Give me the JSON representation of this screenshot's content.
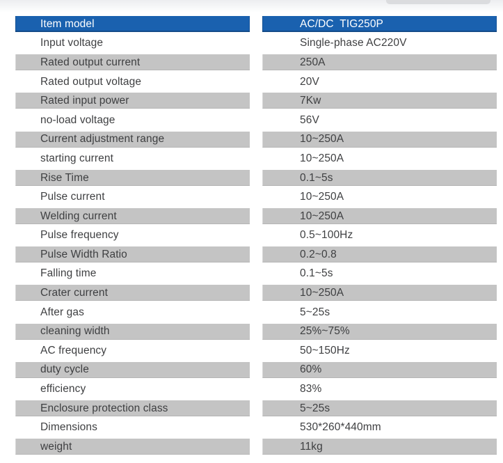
{
  "colors": {
    "page-bg": "#ffffff",
    "header-blue": "#1a61af",
    "header-text": "#ffffff",
    "row-gray": "#c4c4c4",
    "text-dark": "#3e3f41"
  },
  "table": {
    "header": {
      "label": "Item model",
      "value": "AC/DC  TIG250P"
    },
    "rows": [
      {
        "label": "Input voltage",
        "value": "Single-phase AC220V",
        "shade": "white"
      },
      {
        "label": "Rated output current",
        "value": "250A",
        "shade": "gray"
      },
      {
        "label": "Rated output voltage",
        "value": "20V",
        "shade": "white"
      },
      {
        "label": "Rated input power",
        "value": "7Kw",
        "shade": "gray"
      },
      {
        "label": "no-load voltage",
        "value": "56V",
        "shade": "white"
      },
      {
        "label": "Current adjustment range",
        "value": "10~250A",
        "shade": "gray"
      },
      {
        "label": "starting current",
        "value": "10~250A",
        "shade": "white"
      },
      {
        "label": "Rise Time",
        "value": "0.1~5s",
        "shade": "gray"
      },
      {
        "label": "Pulse current",
        "value": "10~250A",
        "shade": "white"
      },
      {
        "label": "Welding current",
        "value": "10~250A",
        "shade": "gray"
      },
      {
        "label": "Pulse frequency",
        "value": "0.5~100Hz",
        "shade": "white"
      },
      {
        "label": "Pulse Width Ratio",
        "value": "0.2~0.8",
        "shade": "gray"
      },
      {
        "label": "Falling time",
        "value": "0.1~5s",
        "shade": "white"
      },
      {
        "label": "Crater current",
        "value": "10~250A",
        "shade": "gray"
      },
      {
        "label": "After gas",
        "value": "5~25s",
        "shade": "white"
      },
      {
        "label": "cleaning width",
        "value": "25%~75%",
        "shade": "gray"
      },
      {
        "label": "AC frequency",
        "value": "50~150Hz",
        "shade": "white"
      },
      {
        "label": "duty cycle",
        "value": "60%",
        "shade": "gray"
      },
      {
        "label": "efficiency",
        "value": "83%",
        "shade": "white"
      },
      {
        "label": "Enclosure protection class",
        "value": "5~25s",
        "shade": "gray"
      },
      {
        "label": "Dimensions",
        "value": "530*260*440mm",
        "shade": "white"
      },
      {
        "label": "weight",
        "value": "11kg",
        "shade": "gray"
      }
    ]
  }
}
